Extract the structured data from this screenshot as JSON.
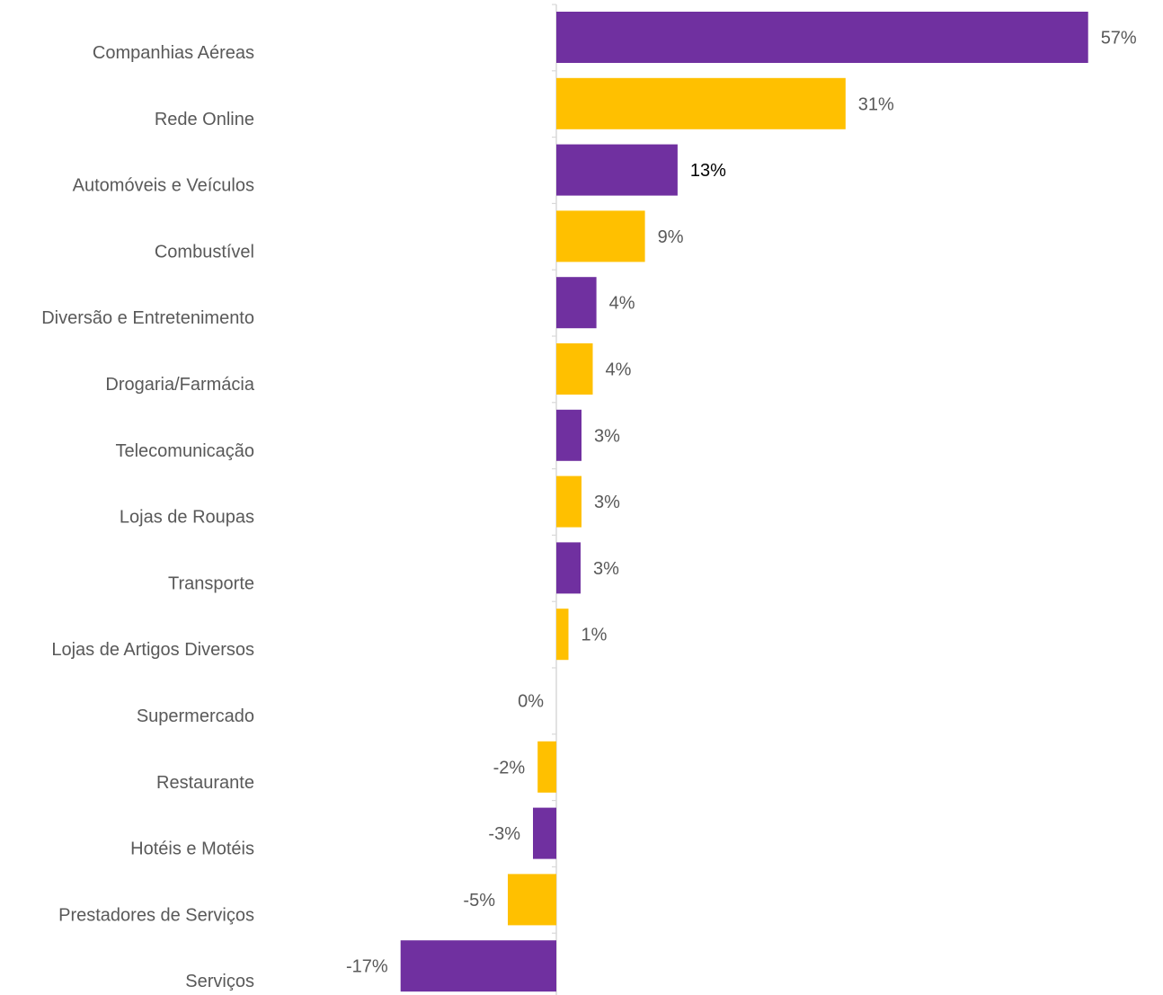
{
  "chart_data": {
    "type": "bar",
    "orientation": "horizontal",
    "title": "",
    "xlabel": "",
    "ylabel": "",
    "categories": [
      "Companhias Aéreas",
      "Rede Online",
      "Automóveis e Veículos",
      "Combustível",
      "Diversão e Entretenimento",
      "Drogaria/Farmácia",
      "Telecomunicação",
      "Lojas de Roupas",
      "Transporte",
      "Lojas de Artigos Diversos",
      "Supermercado",
      "Restaurante",
      "Hotéis e Motéis",
      "Prestadores de Serviços",
      "Serviços"
    ],
    "values": [
      57,
      31,
      13,
      9.5,
      4.3,
      3.9,
      2.7,
      2.7,
      2.6,
      1.3,
      0,
      -2,
      -2.5,
      -5.2,
      -16.7
    ],
    "data_labels": [
      "57%",
      "31%",
      "13%",
      "9%",
      "4%",
      "4%",
      "3%",
      "3%",
      "3%",
      "1%",
      "0%",
      "-2%",
      "-3%",
      "-5%",
      "-17%"
    ],
    "value_unit": "%",
    "xlim": [
      -17,
      57
    ],
    "grid": false,
    "legend": "none",
    "bar_colors": [
      "#7030a0",
      "#ffc000"
    ],
    "label_color": "#595959",
    "emphasized_label_color": "#000000",
    "emphasized_labels": [
      2
    ]
  }
}
